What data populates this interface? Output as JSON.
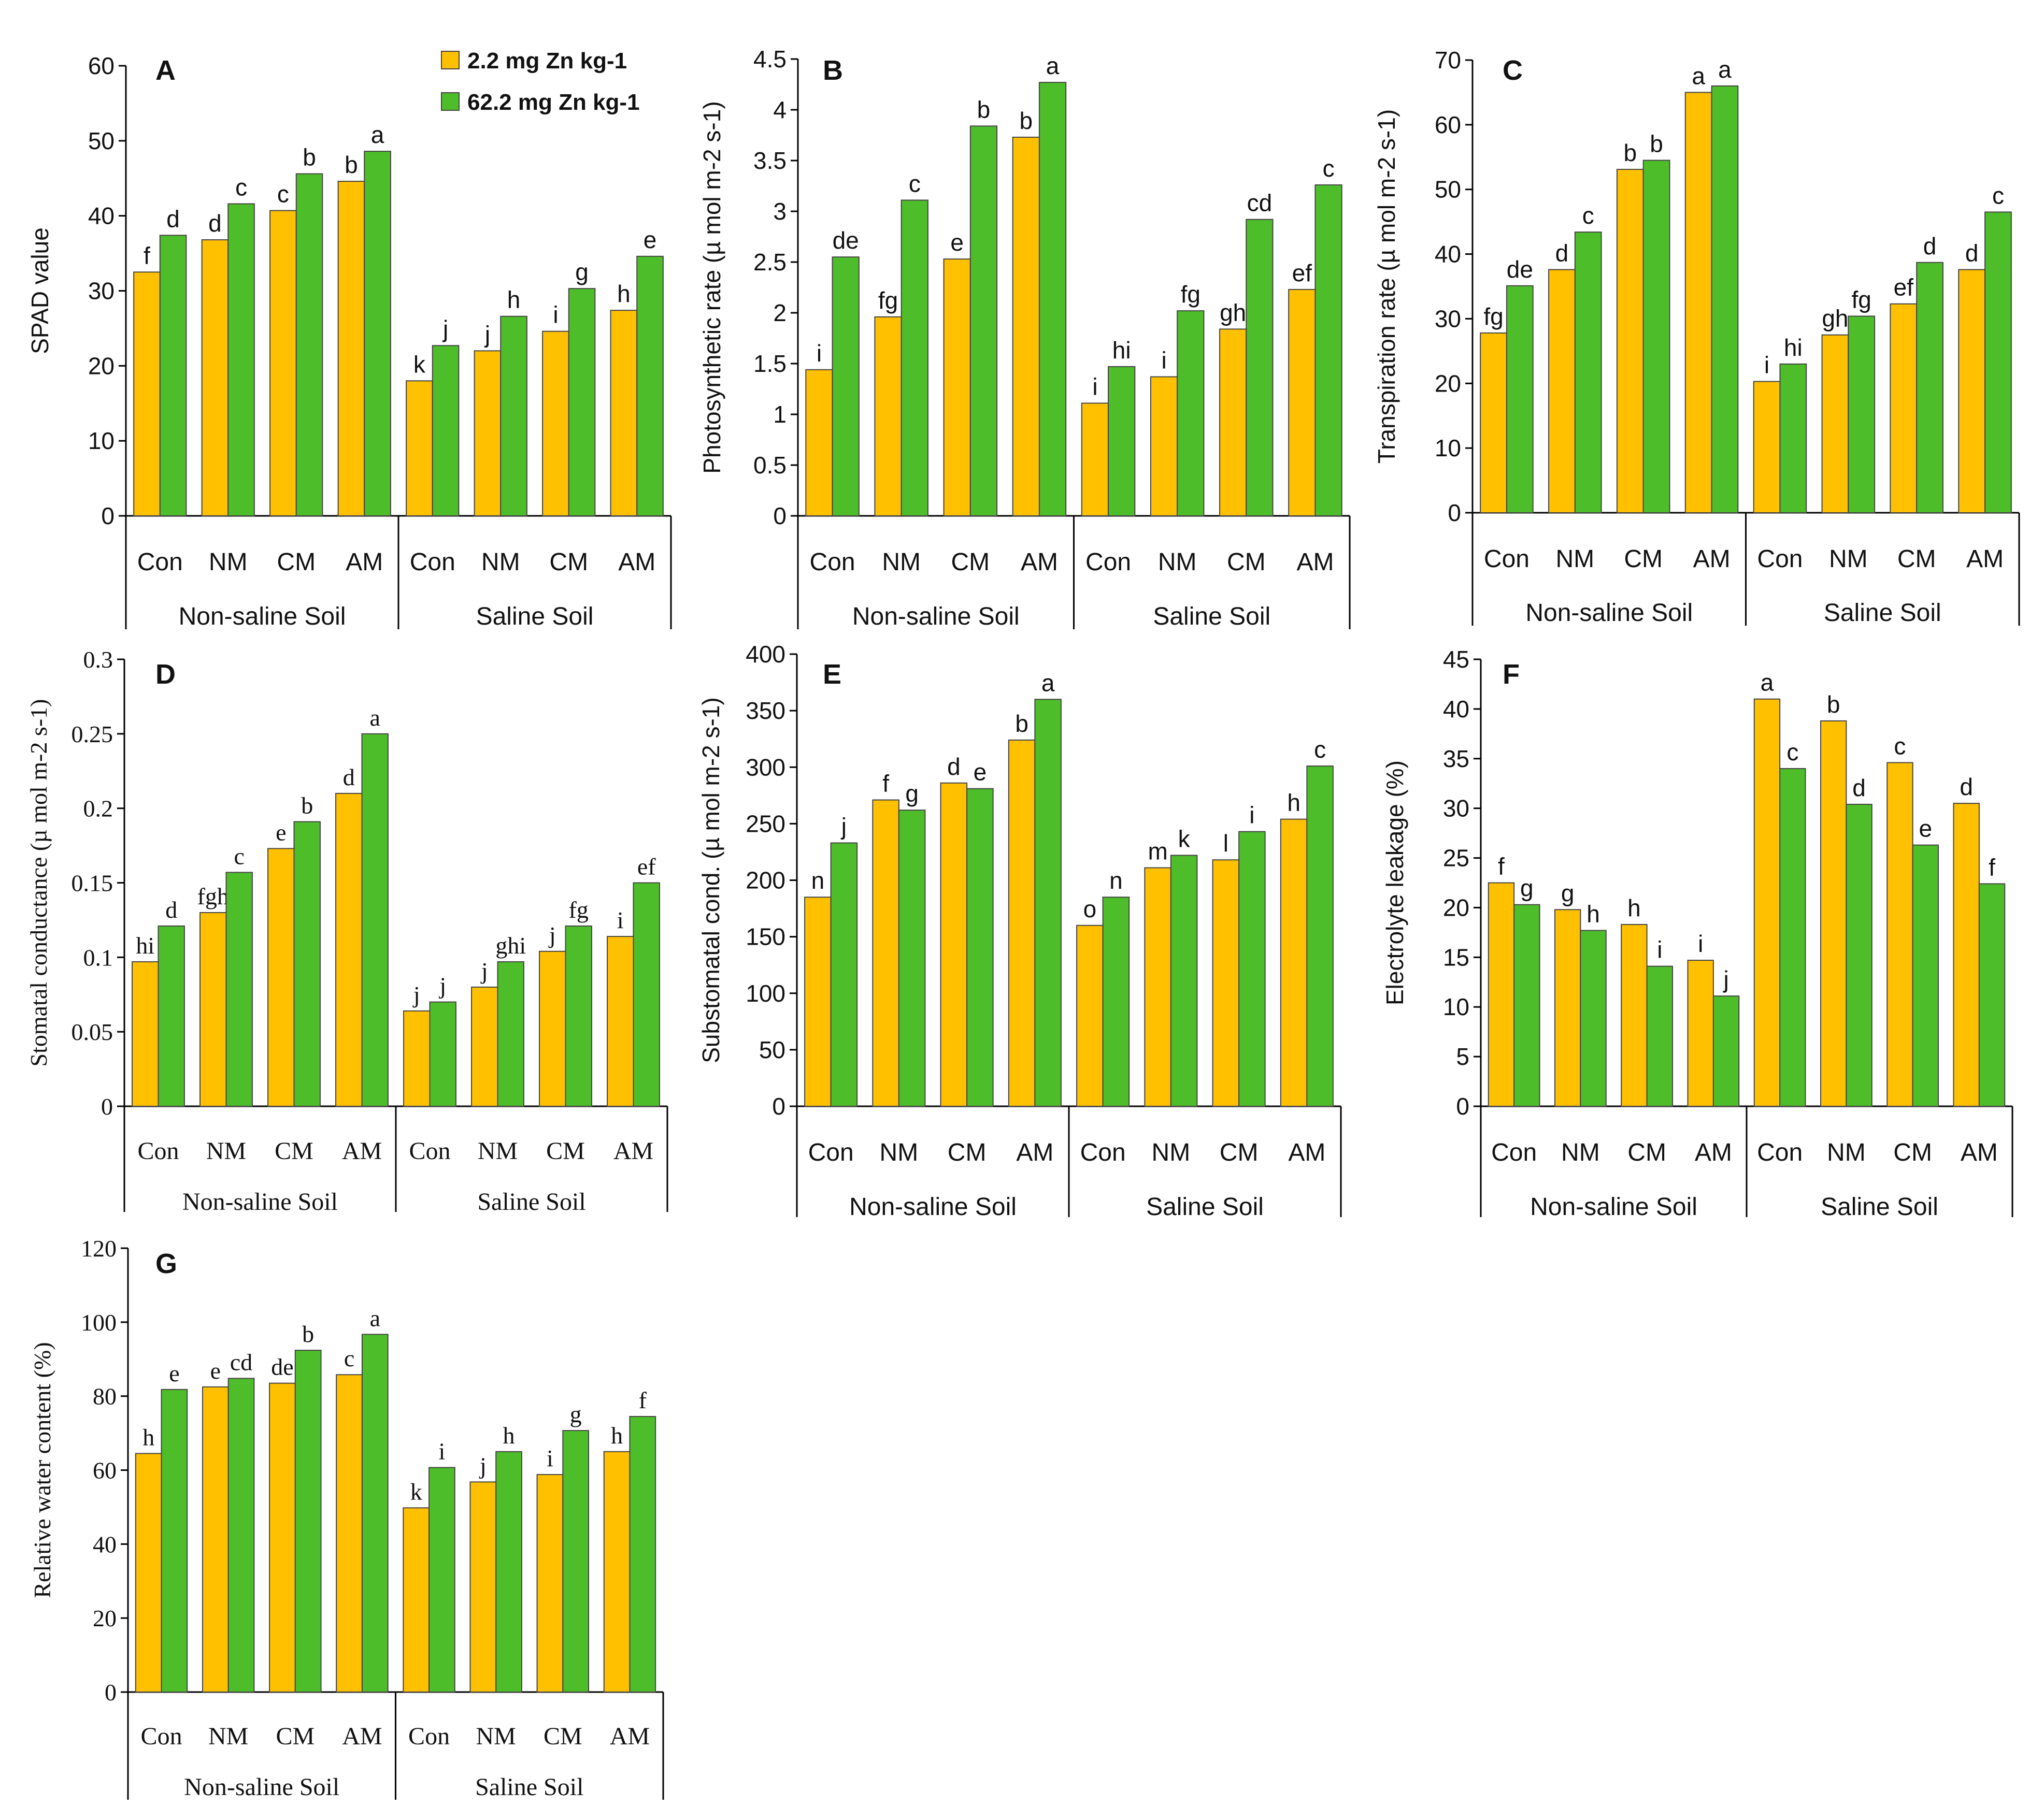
{
  "legend": {
    "items": [
      {
        "label": "2.2 mg Zn kg-1",
        "color": "#FFC000"
      },
      {
        "label": "62.2 mg Zn kg-1",
        "color": "#4EBD2A"
      }
    ]
  },
  "chart_data": [
    {
      "id": "A",
      "panel_letter": "A",
      "type": "bar",
      "ylabel": "SPAD value",
      "ylim": [
        0,
        60
      ],
      "yticks": [
        "0",
        "10",
        "20",
        "30",
        "40",
        "50",
        "60"
      ],
      "categories": [
        "Con",
        "NM",
        "CM",
        "AM",
        "Con",
        "NM",
        "CM",
        "AM"
      ],
      "groups": [
        "Non-saline Soil",
        "Saline Soil"
      ],
      "series": [
        {
          "name": "2.2 mg Zn kg-1",
          "values": [
            32.5,
            36.8,
            40.7,
            44.6,
            18.0,
            22.0,
            24.6,
            27.4
          ],
          "letters": [
            "f",
            "d",
            "c",
            "b",
            "k",
            "j",
            "i",
            "h"
          ]
        },
        {
          "name": "62.2 mg Zn kg-1",
          "values": [
            37.4,
            41.6,
            45.6,
            48.6,
            22.7,
            26.6,
            30.3,
            34.6
          ],
          "letters": [
            "d",
            "c",
            "b",
            "a",
            "j",
            "h",
            "g",
            "e"
          ]
        }
      ]
    },
    {
      "id": "B",
      "panel_letter": "B",
      "type": "bar",
      "ylabel": "Photosynthetic rate (µ mol m-2 s-1)",
      "ylim": [
        0,
        4.5
      ],
      "yticks": [
        "0",
        "0.5",
        "1",
        "1.5",
        "2",
        "2.5",
        "3",
        "3.5",
        "4",
        "4.5"
      ],
      "categories": [
        "Con",
        "NM",
        "CM",
        "AM",
        "Con",
        "NM",
        "CM",
        "AM"
      ],
      "groups": [
        "Non-saline Soil",
        "Saline Soil"
      ],
      "series": [
        {
          "name": "2.2 mg Zn kg-1",
          "values": [
            1.44,
            1.96,
            2.53,
            3.73,
            1.11,
            1.37,
            1.84,
            2.23
          ],
          "letters": [
            "i",
            "fg",
            "e",
            "b",
            "i",
            "i",
            "gh",
            "ef"
          ]
        },
        {
          "name": "62.2 mg Zn kg-1",
          "values": [
            2.55,
            3.11,
            3.84,
            4.27,
            1.47,
            2.02,
            2.92,
            3.26
          ],
          "letters": [
            "de",
            "c",
            "b",
            "a",
            "hi",
            "fg",
            "cd",
            "c"
          ]
        }
      ]
    },
    {
      "id": "C",
      "panel_letter": "C",
      "type": "bar",
      "ylabel": "Transpiration rate (µ mol m-2 s-1)",
      "ylim": [
        0,
        70
      ],
      "yticks": [
        "0",
        "10",
        "20",
        "30",
        "40",
        "50",
        "60",
        "70"
      ],
      "categories": [
        "Con",
        "NM",
        "CM",
        "AM",
        "Con",
        "NM",
        "CM",
        "AM"
      ],
      "groups": [
        "Non-saline Soil",
        "Saline Soil"
      ],
      "series": [
        {
          "name": "2.2 mg Zn kg-1",
          "values": [
            27.8,
            37.6,
            53.1,
            65.0,
            20.3,
            27.5,
            32.3,
            37.6
          ],
          "letters": [
            "fg",
            "d",
            "b",
            "a",
            "i",
            "gh",
            "ef",
            "d"
          ]
        },
        {
          "name": "62.2 mg Zn kg-1",
          "values": [
            35.1,
            43.4,
            54.5,
            66.0,
            23.0,
            30.4,
            38.7,
            46.5
          ],
          "letters": [
            "de",
            "c",
            "b",
            "a",
            "hi",
            "fg",
            "d",
            "c"
          ]
        }
      ]
    },
    {
      "id": "D",
      "panel_letter": "D",
      "type": "bar",
      "ylabel": "Stomatal conductance (µ mol m-2 s-1)",
      "ylim": [
        0,
        0.3
      ],
      "yticks": [
        "0",
        "0.05",
        "0.1",
        "0.15",
        "0.2",
        "0.25",
        "0.3"
      ],
      "categories": [
        "Con",
        "NM",
        "CM",
        "AM",
        "Con",
        "NM",
        "CM",
        "AM"
      ],
      "groups": [
        "Non-saline Soil",
        "Saline Soil"
      ],
      "series": [
        {
          "name": "2.2 mg Zn kg-1",
          "values": [
            0.097,
            0.13,
            0.173,
            0.21,
            0.064,
            0.08,
            0.104,
            0.114
          ],
          "letters": [
            "hi",
            "fgh",
            "e",
            "d",
            "j",
            "j",
            "j",
            "i"
          ]
        },
        {
          "name": "62.2 mg Zn kg-1",
          "values": [
            0.121,
            0.157,
            0.191,
            0.25,
            0.07,
            0.097,
            0.121,
            0.15
          ],
          "letters": [
            "d",
            "c",
            "b",
            "a",
            "j",
            "ghi",
            "fg",
            "ef"
          ]
        }
      ]
    },
    {
      "id": "E",
      "panel_letter": "E",
      "type": "bar",
      "ylabel": "Substomatal cond. (µ mol m-2 s-1)",
      "ylim": [
        0,
        400
      ],
      "yticks": [
        "0",
        "50",
        "100",
        "150",
        "200",
        "250",
        "300",
        "350",
        "400"
      ],
      "categories": [
        "Con",
        "NM",
        "CM",
        "AM",
        "Con",
        "NM",
        "CM",
        "AM"
      ],
      "groups": [
        "Non-saline Soil",
        "Saline Soil"
      ],
      "series": [
        {
          "name": "2.2 mg Zn kg-1",
          "values": [
            185,
            271,
            286,
            324,
            160,
            211,
            218,
            254
          ],
          "letters": [
            "n",
            "f",
            "d",
            "b",
            "o",
            "m",
            "l",
            "h"
          ]
        },
        {
          "name": "62.2 mg Zn kg-1",
          "values": [
            233,
            262,
            281,
            360,
            185,
            222,
            243,
            301
          ],
          "letters": [
            "j",
            "g",
            "e",
            "a",
            "n",
            "k",
            "i",
            "c"
          ]
        }
      ]
    },
    {
      "id": "F",
      "panel_letter": "F",
      "type": "bar",
      "ylabel": "Electrolyte leakage (%)",
      "ylim": [
        0,
        45
      ],
      "yticks": [
        "0",
        "5",
        "10",
        "15",
        "20",
        "25",
        "30",
        "35",
        "40",
        "45"
      ],
      "categories": [
        "Con",
        "NM",
        "CM",
        "AM",
        "Con",
        "NM",
        "CM",
        "AM"
      ],
      "groups": [
        "Non-saline Soil",
        "Saline Soil"
      ],
      "series": [
        {
          "name": "2.2 mg Zn kg-1",
          "values": [
            22.5,
            19.8,
            18.3,
            14.7,
            41.0,
            38.8,
            34.6,
            30.5
          ],
          "letters": [
            "f",
            "g",
            "h",
            "i",
            "a",
            "b",
            "c",
            "d"
          ]
        },
        {
          "name": "62.2 mg Zn kg-1",
          "values": [
            20.3,
            17.7,
            14.1,
            11.1,
            34.0,
            30.4,
            26.3,
            22.4
          ],
          "letters": [
            "g",
            "h",
            "i",
            "j",
            "c",
            "d",
            "e",
            "f"
          ]
        }
      ]
    },
    {
      "id": "G",
      "panel_letter": "G",
      "type": "bar",
      "ylabel": "Relative water content (%)",
      "ylim": [
        0,
        120
      ],
      "yticks": [
        "0",
        "20",
        "40",
        "60",
        "80",
        "100",
        "120"
      ],
      "categories": [
        "Con",
        "NM",
        "CM",
        "AM",
        "Con",
        "NM",
        "CM",
        "AM"
      ],
      "groups": [
        "Non-saline Soil",
        "Saline Soil"
      ],
      "series": [
        {
          "name": "2.2 mg Zn kg-1",
          "values": [
            64.5,
            82.5,
            83.5,
            85.8,
            49.8,
            56.8,
            58.8,
            65.0
          ],
          "letters": [
            "h",
            "e",
            "de",
            "c",
            "k",
            "j",
            "i",
            "h"
          ]
        },
        {
          "name": "62.2 mg Zn kg-1",
          "values": [
            81.8,
            84.8,
            92.4,
            96.7,
            60.7,
            65.0,
            70.7,
            74.5
          ],
          "letters": [
            "e",
            "cd",
            "b",
            "a",
            "i",
            "h",
            "g",
            "f"
          ]
        }
      ]
    }
  ]
}
